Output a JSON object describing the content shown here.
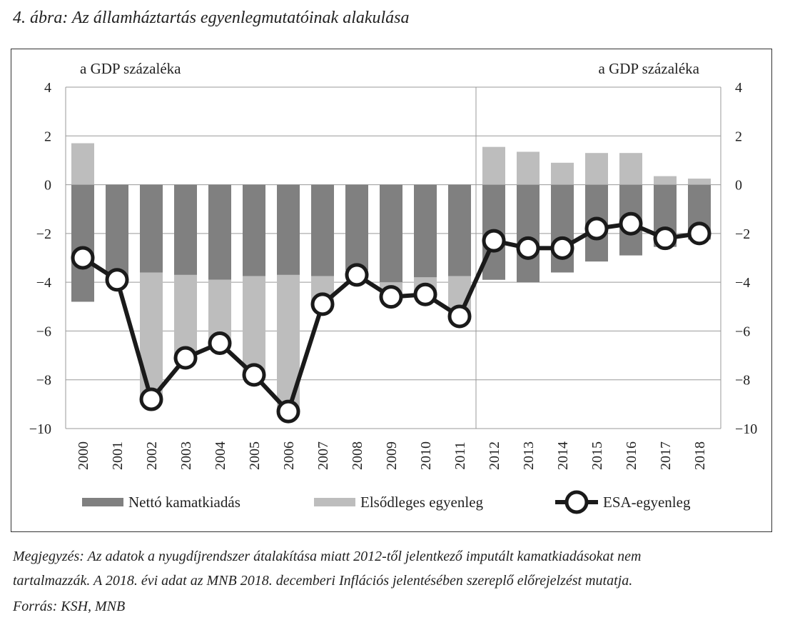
{
  "title": "4. ábra: Az államháztartás egyenlegmutatóinak alakulása",
  "chart_data": {
    "type": "bar+line",
    "left_axis_label": "a GDP százaléka",
    "right_axis_label": "a GDP százaléka",
    "ylim": [
      -10,
      4
    ],
    "yticks": [
      4,
      2,
      0,
      -2,
      -4,
      -6,
      -8,
      -10
    ],
    "ytick_labels": [
      "4",
      "2",
      "0",
      "−2",
      "−4",
      "−6",
      "−8",
      "−10"
    ],
    "categories": [
      "2000",
      "2001",
      "2002",
      "2003",
      "2004",
      "2005",
      "2006",
      "2007",
      "2008",
      "2009",
      "2010",
      "2011",
      "2012",
      "2013",
      "2014",
      "2015",
      "2016",
      "2017",
      "2018"
    ],
    "series": [
      {
        "name": "Nettó kamatkiadás",
        "kind": "bar",
        "color": "#808080",
        "values": [
          -4.8,
          -3.9,
          -3.6,
          -3.7,
          -3.9,
          -3.75,
          -3.7,
          -3.75,
          -3.5,
          -4.0,
          -3.8,
          -3.75,
          -3.9,
          -4.0,
          -3.6,
          -3.15,
          -2.9,
          -2.55,
          -2.25
        ]
      },
      {
        "name": "Elsődleges egyenleg",
        "kind": "bar",
        "color": "#bdbdbd",
        "values": [
          1.7,
          0.0,
          -5.2,
          -3.4,
          -2.6,
          -4.0,
          -5.6,
          -1.2,
          -0.2,
          -0.55,
          -0.7,
          -1.6,
          1.55,
          1.35,
          0.9,
          1.3,
          1.3,
          0.35,
          0.25
        ]
      },
      {
        "name": "ESA-egyenleg",
        "kind": "line",
        "color": "#1a1a1a",
        "values": [
          -3.0,
          -3.9,
          -8.8,
          -7.1,
          -6.5,
          -7.8,
          -9.3,
          -4.9,
          -3.7,
          -4.6,
          -4.5,
          -5.4,
          -2.3,
          -2.6,
          -2.6,
          -1.8,
          -1.6,
          -2.2,
          -2.0
        ]
      }
    ],
    "grid": true,
    "legend_placement": "bottom"
  },
  "notes": [
    "Megjegyzés: Az adatok a nyugdíjrendszer átalakítása miatt 2012-től jelentkező imputált kamatkiadásokat nem",
    "tartalmazzák. A 2018. évi adat az MNB 2018. decemberi Inflációs jelentésében szereplő előrejelzést mutatja.",
    "Forrás: KSH, MNB"
  ]
}
